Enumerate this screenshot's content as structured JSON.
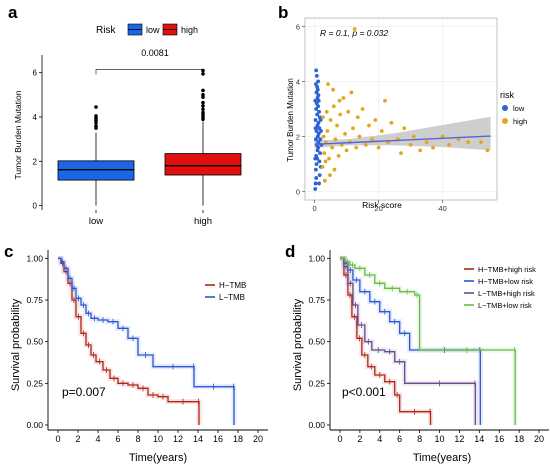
{
  "colors": {
    "low_box": "#1a66e6",
    "high_box": "#e01010",
    "b_low": "#2b63d6",
    "b_high": "#e0a820",
    "reg_line": "#5a63d6",
    "ci_band": "#bdbdbd",
    "c_h": "#b32417",
    "c_l": "#2b57d6",
    "d_hh": "#b32417",
    "d_hl": "#2b57d6",
    "d_lh": "#6a4a8c",
    "d_ll": "#66bb44",
    "grid": "#eeeeee",
    "axis": "#000000",
    "pval_text": "#222222"
  },
  "chart_data": [
    {
      "panel": "a",
      "type": "box",
      "legend_title": "Risk",
      "legend_entries": [
        "low",
        "high"
      ],
      "legend_position": "top",
      "categories": [
        "low",
        "high"
      ],
      "ylabel": "Tumor Burden Mutation",
      "ylim": [
        -0.2,
        6.8
      ],
      "yticks": [
        0,
        2,
        4,
        6
      ],
      "pvalue_text": "0.0081",
      "boxes": [
        {
          "name": "low",
          "q1": 1.15,
          "median": 1.62,
          "q3": 2.02,
          "whisker_low": 0.0,
          "whisker_high": 3.3,
          "outliers": [
            3.5,
            3.6,
            3.75,
            3.85,
            3.95,
            4.05,
            4.45
          ]
        },
        {
          "name": "high",
          "q1": 1.38,
          "median": 1.8,
          "q3": 2.35,
          "whisker_low": 0.0,
          "whisker_high": 3.8,
          "outliers": [
            3.9,
            4.0,
            4.1,
            4.2,
            4.35,
            4.5,
            4.65,
            4.9,
            5.0,
            5.2,
            5.95,
            6.1
          ]
        }
      ]
    },
    {
      "panel": "b",
      "type": "scatter",
      "xlabel": "Risk score",
      "ylabel": "Tumor Burden Mutation",
      "xlim": [
        -3,
        57
      ],
      "ylim": [
        -0.3,
        6.3
      ],
      "xticks": [
        0,
        20,
        40
      ],
      "yticks": [
        0,
        2,
        4,
        6
      ],
      "legend_title": "risk",
      "legend_entries": [
        "low",
        "high"
      ],
      "legend_position": "right",
      "annotation": "R = 0.1, p = 0.032",
      "regression": {
        "x": [
          0,
          55
        ],
        "y": [
          1.72,
          2.02
        ],
        "ci": [
          [
            0,
            1.58,
            1.86
          ],
          [
            10,
            1.68,
            1.9
          ],
          [
            25,
            1.68,
            2.12
          ],
          [
            40,
            1.62,
            2.42
          ],
          [
            55,
            1.5,
            2.72
          ]
        ]
      },
      "series": [
        {
          "name": "low",
          "points": [
            [
              0.2,
              0.1
            ],
            [
              0.3,
              0.3
            ],
            [
              0.5,
              0.5
            ],
            [
              0.4,
              0.8
            ],
            [
              0.6,
              1.0
            ],
            [
              0.8,
              1.2
            ],
            [
              0.5,
              1.3
            ],
            [
              0.9,
              1.5
            ],
            [
              1.1,
              1.6
            ],
            [
              0.7,
              1.7
            ],
            [
              1.2,
              1.8
            ],
            [
              0.4,
              1.9
            ],
            [
              1.0,
              2.0
            ],
            [
              1.3,
              2.1
            ],
            [
              0.6,
              2.2
            ],
            [
              1.5,
              2.3
            ],
            [
              0.9,
              2.4
            ],
            [
              1.2,
              2.5
            ],
            [
              0.3,
              2.6
            ],
            [
              1.6,
              2.7
            ],
            [
              0.8,
              2.8
            ],
            [
              1.4,
              2.9
            ],
            [
              0.5,
              3.0
            ],
            [
              1.1,
              3.1
            ],
            [
              0.7,
              3.2
            ],
            [
              1.3,
              3.3
            ],
            [
              0.9,
              3.4
            ],
            [
              1.2,
              3.5
            ],
            [
              0.6,
              3.6
            ],
            [
              1.0,
              3.7
            ],
            [
              0.8,
              3.8
            ],
            [
              0.4,
              3.9
            ],
            [
              1.1,
              4.0
            ],
            [
              0.7,
              4.2
            ],
            [
              0.5,
              4.4
            ],
            [
              1.5,
              1.1
            ],
            [
              1.7,
              1.4
            ],
            [
              1.8,
              1.9
            ],
            [
              2.0,
              2.2
            ],
            [
              1.9,
              2.6
            ],
            [
              2.1,
              1.7
            ],
            [
              0.2,
              1.2
            ],
            [
              0.3,
              2.3
            ],
            [
              0.2,
              3.3
            ],
            [
              1.6,
              0.6
            ],
            [
              1.4,
              0.3
            ],
            [
              1.9,
              0.9
            ]
          ]
        },
        {
          "name": "high",
          "points": [
            [
              2.5,
              0.9
            ],
            [
              3.0,
              1.4
            ],
            [
              3.5,
              1.8
            ],
            [
              4.0,
              2.2
            ],
            [
              4.5,
              1.2
            ],
            [
              5.0,
              2.6
            ],
            [
              5.5,
              1.6
            ],
            [
              6.0,
              3.1
            ],
            [
              6.5,
              1.9
            ],
            [
              7.0,
              2.4
            ],
            [
              7.5,
              1.3
            ],
            [
              8.0,
              2.8
            ],
            [
              8.5,
              1.7
            ],
            [
              9.0,
              3.4
            ],
            [
              9.5,
              2.1
            ],
            [
              10.0,
              1.5
            ],
            [
              10.5,
              2.9
            ],
            [
              11.0,
              1.8
            ],
            [
              11.5,
              3.6
            ],
            [
              12.0,
              2.3
            ],
            [
              12.5,
              5.9
            ],
            [
              13.0,
              1.6
            ],
            [
              13.5,
              2.7
            ],
            [
              14.0,
              2.0
            ],
            [
              15.0,
              3.0
            ],
            [
              16.0,
              1.7
            ],
            [
              17.0,
              2.4
            ],
            [
              18.0,
              1.9
            ],
            [
              19.0,
              2.6
            ],
            [
              20.0,
              1.6
            ],
            [
              21.0,
              2.2
            ],
            [
              22.0,
              3.3
            ],
            [
              23.0,
              1.8
            ],
            [
              24.0,
              2.5
            ],
            [
              26.0,
              1.9
            ],
            [
              27.0,
              1.4
            ],
            [
              28.0,
              2.3
            ],
            [
              30.0,
              1.7
            ],
            [
              31.0,
              2.0
            ],
            [
              33.0,
              1.5
            ],
            [
              35.0,
              1.8
            ],
            [
              37.0,
              1.6
            ],
            [
              40.0,
              2.0
            ],
            [
              42.0,
              1.7
            ],
            [
              45.0,
              1.9
            ],
            [
              48.0,
              1.8
            ],
            [
              52.0,
              1.8
            ],
            [
              54.0,
              1.5
            ],
            [
              3.2,
              0.4
            ],
            [
              4.8,
              0.6
            ],
            [
              6.2,
              0.8
            ],
            [
              2.8,
              2.0
            ],
            [
              3.8,
              2.9
            ],
            [
              5.8,
              3.7
            ],
            [
              7.8,
              3.3
            ],
            [
              4.2,
              3.9
            ],
            [
              2.6,
              2.7
            ],
            [
              3.4,
              1.1
            ]
          ]
        }
      ]
    },
    {
      "panel": "c",
      "type": "line",
      "ylabel": "Survival probability",
      "xlabel": "Time(years)",
      "xlim": [
        -1,
        21
      ],
      "ylim": [
        -0.03,
        1.05
      ],
      "xticks": [
        0,
        2,
        4,
        6,
        8,
        10,
        12,
        14,
        16,
        18,
        20
      ],
      "yticks": [
        0.0,
        0.25,
        0.5,
        0.75,
        1.0
      ],
      "ytick_labels": [
        "0.00",
        "0.25",
        "0.50",
        "0.75",
        "1.00"
      ],
      "legend_entries": [
        "H−TMB",
        "L−TMB"
      ],
      "legend_position": "top-right",
      "annotation": "p=0.007",
      "series": [
        {
          "name": "H−TMB",
          "points": [
            [
              0,
              1.0
            ],
            [
              0.3,
              0.97
            ],
            [
              0.6,
              0.92
            ],
            [
              1.0,
              0.85
            ],
            [
              1.4,
              0.75
            ],
            [
              1.8,
              0.65
            ],
            [
              2.3,
              0.55
            ],
            [
              2.8,
              0.48
            ],
            [
              3.3,
              0.42
            ],
            [
              3.8,
              0.38
            ],
            [
              4.5,
              0.33
            ],
            [
              5.2,
              0.28
            ],
            [
              6.0,
              0.25
            ],
            [
              7.0,
              0.24
            ],
            [
              8.0,
              0.22
            ],
            [
              9.0,
              0.18
            ],
            [
              10.0,
              0.17
            ],
            [
              11.0,
              0.14
            ],
            [
              14.0,
              0.14
            ],
            [
              14.1,
              0.0
            ]
          ]
        },
        {
          "name": "L−TMB",
          "points": [
            [
              0,
              1.0
            ],
            [
              0.3,
              0.98
            ],
            [
              0.6,
              0.94
            ],
            [
              1.0,
              0.88
            ],
            [
              1.4,
              0.82
            ],
            [
              1.8,
              0.76
            ],
            [
              2.3,
              0.72
            ],
            [
              2.8,
              0.67
            ],
            [
              3.3,
              0.64
            ],
            [
              4.0,
              0.63
            ],
            [
              5.0,
              0.62
            ],
            [
              6.0,
              0.58
            ],
            [
              7.0,
              0.52
            ],
            [
              8.0,
              0.42
            ],
            [
              9.5,
              0.35
            ],
            [
              13.5,
              0.35
            ],
            [
              13.6,
              0.23
            ],
            [
              17.5,
              0.23
            ],
            [
              17.6,
              0.0
            ]
          ]
        }
      ]
    },
    {
      "panel": "d",
      "type": "line",
      "ylabel": "Survival probability",
      "xlabel": "Time(years)",
      "xlim": [
        -1,
        21
      ],
      "ylim": [
        -0.03,
        1.05
      ],
      "xticks": [
        0,
        2,
        4,
        6,
        8,
        10,
        12,
        14,
        16,
        18,
        20
      ],
      "yticks": [
        0.0,
        0.25,
        0.5,
        0.75,
        1.0
      ],
      "ytick_labels": [
        "0.00",
        "0.25",
        "0.50",
        "0.75",
        "1.00"
      ],
      "legend_entries": [
        "H−TMB+high risk",
        "H−TMB+low risk",
        "L−TMB+high risk",
        "L−TMB+low risk"
      ],
      "legend_position": "top-right",
      "annotation": "p<0.001",
      "series": [
        {
          "name": "H−TMB+high risk",
          "points": [
            [
              0,
              1.0
            ],
            [
              0.4,
              0.9
            ],
            [
              0.8,
              0.78
            ],
            [
              1.2,
              0.65
            ],
            [
              1.7,
              0.52
            ],
            [
              2.2,
              0.42
            ],
            [
              2.8,
              0.35
            ],
            [
              3.5,
              0.3
            ],
            [
              4.5,
              0.26
            ],
            [
              5.5,
              0.18
            ],
            [
              6.0,
              0.08
            ],
            [
              9.0,
              0.08
            ],
            [
              9.1,
              0.0
            ]
          ]
        },
        {
          "name": "H−TMB+low risk",
          "points": [
            [
              0,
              1.0
            ],
            [
              0.4,
              0.97
            ],
            [
              0.8,
              0.93
            ],
            [
              1.3,
              0.87
            ],
            [
              2.0,
              0.8
            ],
            [
              3.0,
              0.74
            ],
            [
              4.0,
              0.68
            ],
            [
              5.0,
              0.62
            ],
            [
              6.0,
              0.55
            ],
            [
              7.0,
              0.45
            ],
            [
              14.0,
              0.45
            ],
            [
              14.1,
              0.0
            ]
          ]
        },
        {
          "name": "L−TMB+high risk",
          "points": [
            [
              0,
              1.0
            ],
            [
              0.4,
              0.95
            ],
            [
              0.8,
              0.85
            ],
            [
              1.3,
              0.72
            ],
            [
              1.8,
              0.6
            ],
            [
              2.5,
              0.5
            ],
            [
              3.2,
              0.45
            ],
            [
              4.5,
              0.44
            ],
            [
              5.5,
              0.38
            ],
            [
              6.5,
              0.25
            ],
            [
              13.5,
              0.25
            ],
            [
              13.6,
              0.0
            ]
          ]
        },
        {
          "name": "L−TMB+low risk",
          "points": [
            [
              0,
              1.0
            ],
            [
              0.5,
              0.98
            ],
            [
              1.0,
              0.96
            ],
            [
              1.5,
              0.94
            ],
            [
              2.5,
              0.9
            ],
            [
              3.5,
              0.85
            ],
            [
              4.5,
              0.82
            ],
            [
              6.0,
              0.8
            ],
            [
              7.5,
              0.78
            ],
            [
              8.0,
              0.45
            ],
            [
              17.5,
              0.45
            ],
            [
              17.6,
              0.0
            ]
          ]
        }
      ]
    }
  ],
  "panel_labels": [
    "a",
    "b",
    "c",
    "d"
  ]
}
